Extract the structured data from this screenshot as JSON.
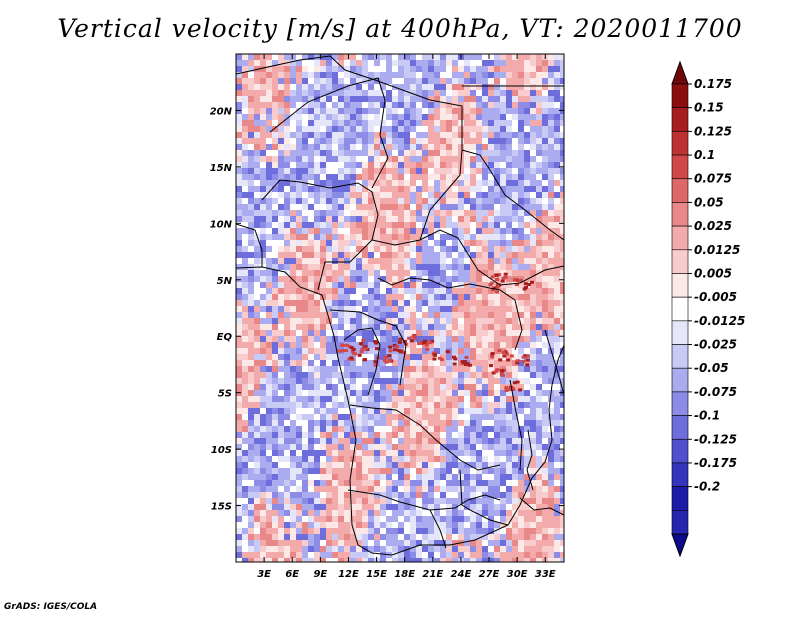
{
  "title": "Vertical velocity [m/s] at 400hPa, VT: 2020011700",
  "credit": "GrADS: IGES/COLA",
  "chart_data": {
    "type": "heatmap",
    "title": "Vertical velocity [m/s] at 400hPa, VT: 2020011700",
    "variable": "vertical velocity",
    "units": "m/s",
    "level": "400hPa",
    "valid_time": "2020011700",
    "xlim": [
      0,
      35
    ],
    "ylim": [
      -20,
      25
    ],
    "x_ticks": [
      {
        "value": 3,
        "label": "3E"
      },
      {
        "value": 6,
        "label": "6E"
      },
      {
        "value": 9,
        "label": "9E"
      },
      {
        "value": 12,
        "label": "12E"
      },
      {
        "value": 15,
        "label": "15E"
      },
      {
        "value": 18,
        "label": "18E"
      },
      {
        "value": 21,
        "label": "21E"
      },
      {
        "value": 24,
        "label": "24E"
      },
      {
        "value": 27,
        "label": "27E"
      },
      {
        "value": 30,
        "label": "30E"
      },
      {
        "value": 33,
        "label": "33E"
      }
    ],
    "y_ticks": [
      {
        "value": 20,
        "label": "20N"
      },
      {
        "value": 15,
        "label": "15N"
      },
      {
        "value": 10,
        "label": "10N"
      },
      {
        "value": 5,
        "label": "5N"
      },
      {
        "value": 0,
        "label": "EQ"
      },
      {
        "value": -5,
        "label": "5S"
      },
      {
        "value": -10,
        "label": "10S"
      },
      {
        "value": -15,
        "label": "15S"
      }
    ],
    "colorbar": {
      "orientation": "vertical",
      "extend": "both",
      "levels": [
        {
          "label": "0.175",
          "color": "#8c0f0f"
        },
        {
          "label": "0.15",
          "color": "#a81e1e"
        },
        {
          "label": "0.125",
          "color": "#bf3232"
        },
        {
          "label": "0.1",
          "color": "#d24848"
        },
        {
          "label": "0.075",
          "color": "#de6767"
        },
        {
          "label": "0.05",
          "color": "#e98888"
        },
        {
          "label": "0.025",
          "color": "#f2aaaa"
        },
        {
          "label": "0.0125",
          "color": "#f8cccc"
        },
        {
          "label": "0.005",
          "color": "#fde8e8"
        },
        {
          "label": "-0.005",
          "color": "#ffffff"
        },
        {
          "label": "-0.0125",
          "color": "#e6e6fb"
        },
        {
          "label": "-0.025",
          "color": "#c9c9f6"
        },
        {
          "label": "-0.05",
          "color": "#ababef"
        },
        {
          "label": "-0.075",
          "color": "#8c8ce6"
        },
        {
          "label": "-0.1",
          "color": "#6d6ddc"
        },
        {
          "label": "-0.125",
          "color": "#5151cf"
        },
        {
          "label": "-0.175",
          "color": "#3434bf"
        },
        {
          "label": "-0.2",
          "color": "#1c1ca9"
        }
      ],
      "top_extend_color": "#6e0808",
      "bottom_extend_color": "#0c0c8c",
      "band_below_lowest_color": "#2626b0"
    }
  }
}
